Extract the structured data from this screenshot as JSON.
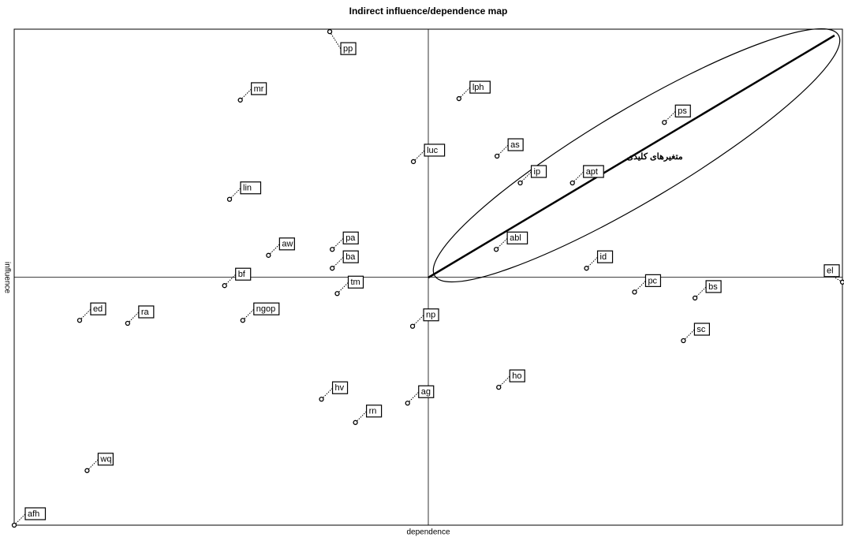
{
  "chart_data": {
    "type": "scatter",
    "title": "Indirect influence/dependence map",
    "x_label": "dependence",
    "y_label": "influence",
    "annotation": "متغیرهای کلیدی",
    "xlim": [
      0,
      100
    ],
    "ylim": [
      0,
      100
    ],
    "color": "#000000",
    "labels": [
      "pp",
      "mr",
      "lph",
      "ps",
      "as",
      "luc",
      "ip",
      "apt",
      "lin",
      "abl",
      "pa",
      "aw",
      "ba",
      "id",
      "bf",
      "tm",
      "pc",
      "bs",
      "el",
      "ed",
      "ra",
      "ngop",
      "np",
      "sc",
      "ho",
      "hv",
      "ag",
      "rn",
      "wq",
      "afh"
    ],
    "x": [
      38.1,
      27.3,
      53.7,
      78.5,
      58.3,
      48.2,
      61.1,
      67.4,
      26.0,
      58.2,
      38.4,
      30.7,
      38.4,
      69.1,
      25.4,
      39.0,
      74.9,
      82.2,
      100,
      7.9,
      13.7,
      27.6,
      48.1,
      80.8,
      58.5,
      37.1,
      47.5,
      41.2,
      8.8,
      0
    ],
    "values": [
      99.5,
      85.7,
      86.0,
      81.2,
      74.4,
      73.3,
      69.0,
      69.0,
      65.7,
      55.6,
      55.6,
      54.4,
      51.8,
      51.8,
      48.3,
      46.7,
      47.0,
      45.8,
      49.0,
      41.3,
      40.7,
      41.3,
      40.1,
      37.2,
      27.8,
      25.4,
      24.6,
      20.7,
      11.0,
      0
    ]
  }
}
